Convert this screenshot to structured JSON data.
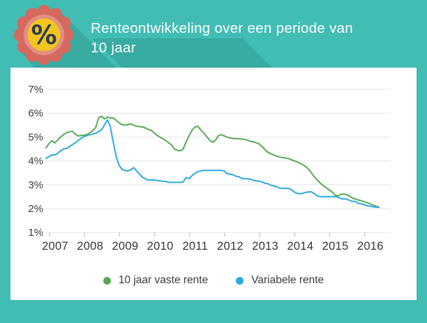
{
  "header": {
    "title_line1": "Renteontwikkeling over een periode van",
    "title_line2": "10 jaar",
    "badge": {
      "icon": "percent-badge-icon",
      "symbol": "%"
    }
  },
  "colors": {
    "background_teal": "#41bdb4",
    "long_shadow_teal": "#37a59c",
    "card_white": "#ffffff",
    "fixed_rate_green": "#57a955",
    "variable_rate_blue": "#2aaade",
    "gridline_gray": "#e6e6e6",
    "axis_text": "#3c3c3c",
    "badge_coral": "#d6695e",
    "badge_coral_light": "#e18f85",
    "badge_yellow": "#f2c51f",
    "badge_percent_navy": "#2d3c4e"
  },
  "chart_data": {
    "type": "line",
    "title": "Renteontwikkeling over een periode van 10 jaar",
    "xlabel": "",
    "ylabel": "",
    "grid": true,
    "legend_position": "bottom",
    "ylim": [
      1,
      7
    ],
    "y_ticks": [
      "7%",
      "6%",
      "5%",
      "4%",
      "3%",
      "2%",
      "1%"
    ],
    "y_tick_values": [
      7,
      6,
      5,
      4,
      3,
      2,
      1
    ],
    "x_ticks": [
      "2007",
      "2008",
      "2009",
      "2010",
      "2011",
      "2012",
      "2013",
      "2014",
      "2015",
      "2016"
    ],
    "x_start_year": 2007,
    "points_per_year": 12,
    "x_range_note": "monthly values Jan 2007 - Jul 2016, percent interest rate",
    "series": [
      {
        "name": "10 jaar vaste rente",
        "color": "#57a955",
        "values": [
          4.55,
          4.72,
          4.85,
          4.75,
          4.88,
          5.0,
          5.1,
          5.18,
          5.22,
          5.24,
          5.12,
          5.05,
          5.06,
          5.08,
          5.1,
          5.18,
          5.26,
          5.4,
          5.8,
          5.87,
          5.76,
          5.83,
          5.8,
          5.8,
          5.7,
          5.6,
          5.52,
          5.5,
          5.52,
          5.55,
          5.5,
          5.45,
          5.44,
          5.42,
          5.38,
          5.32,
          5.28,
          5.18,
          5.07,
          5.0,
          4.93,
          4.85,
          4.76,
          4.66,
          4.5,
          4.44,
          4.42,
          4.5,
          4.8,
          5.05,
          5.28,
          5.42,
          5.45,
          5.3,
          5.18,
          5.02,
          4.88,
          4.78,
          4.85,
          5.05,
          5.1,
          5.05,
          5.0,
          4.96,
          4.94,
          4.93,
          4.93,
          4.92,
          4.9,
          4.87,
          4.82,
          4.8,
          4.76,
          4.71,
          4.6,
          4.48,
          4.36,
          4.3,
          4.25,
          4.2,
          4.16,
          4.14,
          4.12,
          4.1,
          4.05,
          4.0,
          3.96,
          3.9,
          3.84,
          3.76,
          3.64,
          3.48,
          3.32,
          3.19,
          3.06,
          2.96,
          2.87,
          2.78,
          2.7,
          2.56,
          2.53,
          2.6,
          2.61,
          2.58,
          2.52,
          2.44,
          2.4,
          2.36,
          2.33,
          2.29,
          2.25,
          2.2,
          2.15,
          2.1,
          2.06
        ]
      },
      {
        "name": "Variabele rente",
        "color": "#2aaade",
        "values": [
          4.1,
          4.18,
          4.25,
          4.25,
          4.32,
          4.42,
          4.5,
          4.52,
          4.6,
          4.68,
          4.75,
          4.85,
          4.95,
          5.02,
          5.06,
          5.1,
          5.12,
          5.16,
          5.22,
          5.3,
          5.5,
          5.72,
          5.45,
          4.8,
          4.2,
          3.82,
          3.65,
          3.6,
          3.58,
          3.62,
          3.72,
          3.58,
          3.45,
          3.32,
          3.25,
          3.2,
          3.2,
          3.2,
          3.18,
          3.16,
          3.15,
          3.14,
          3.1,
          3.1,
          3.1,
          3.1,
          3.1,
          3.12,
          3.3,
          3.26,
          3.38,
          3.48,
          3.55,
          3.58,
          3.6,
          3.6,
          3.6,
          3.6,
          3.6,
          3.6,
          3.6,
          3.58,
          3.46,
          3.45,
          3.42,
          3.36,
          3.34,
          3.26,
          3.25,
          3.25,
          3.24,
          3.18,
          3.16,
          3.15,
          3.12,
          3.06,
          3.04,
          2.98,
          2.95,
          2.92,
          2.86,
          2.85,
          2.85,
          2.84,
          2.8,
          2.7,
          2.64,
          2.62,
          2.64,
          2.68,
          2.7,
          2.7,
          2.62,
          2.52,
          2.5,
          2.5,
          2.5,
          2.5,
          2.5,
          2.5,
          2.48,
          2.42,
          2.4,
          2.4,
          2.34,
          2.3,
          2.3,
          2.22,
          2.2,
          2.16,
          2.12,
          2.1,
          2.08,
          2.06,
          2.05
        ]
      }
    ]
  }
}
